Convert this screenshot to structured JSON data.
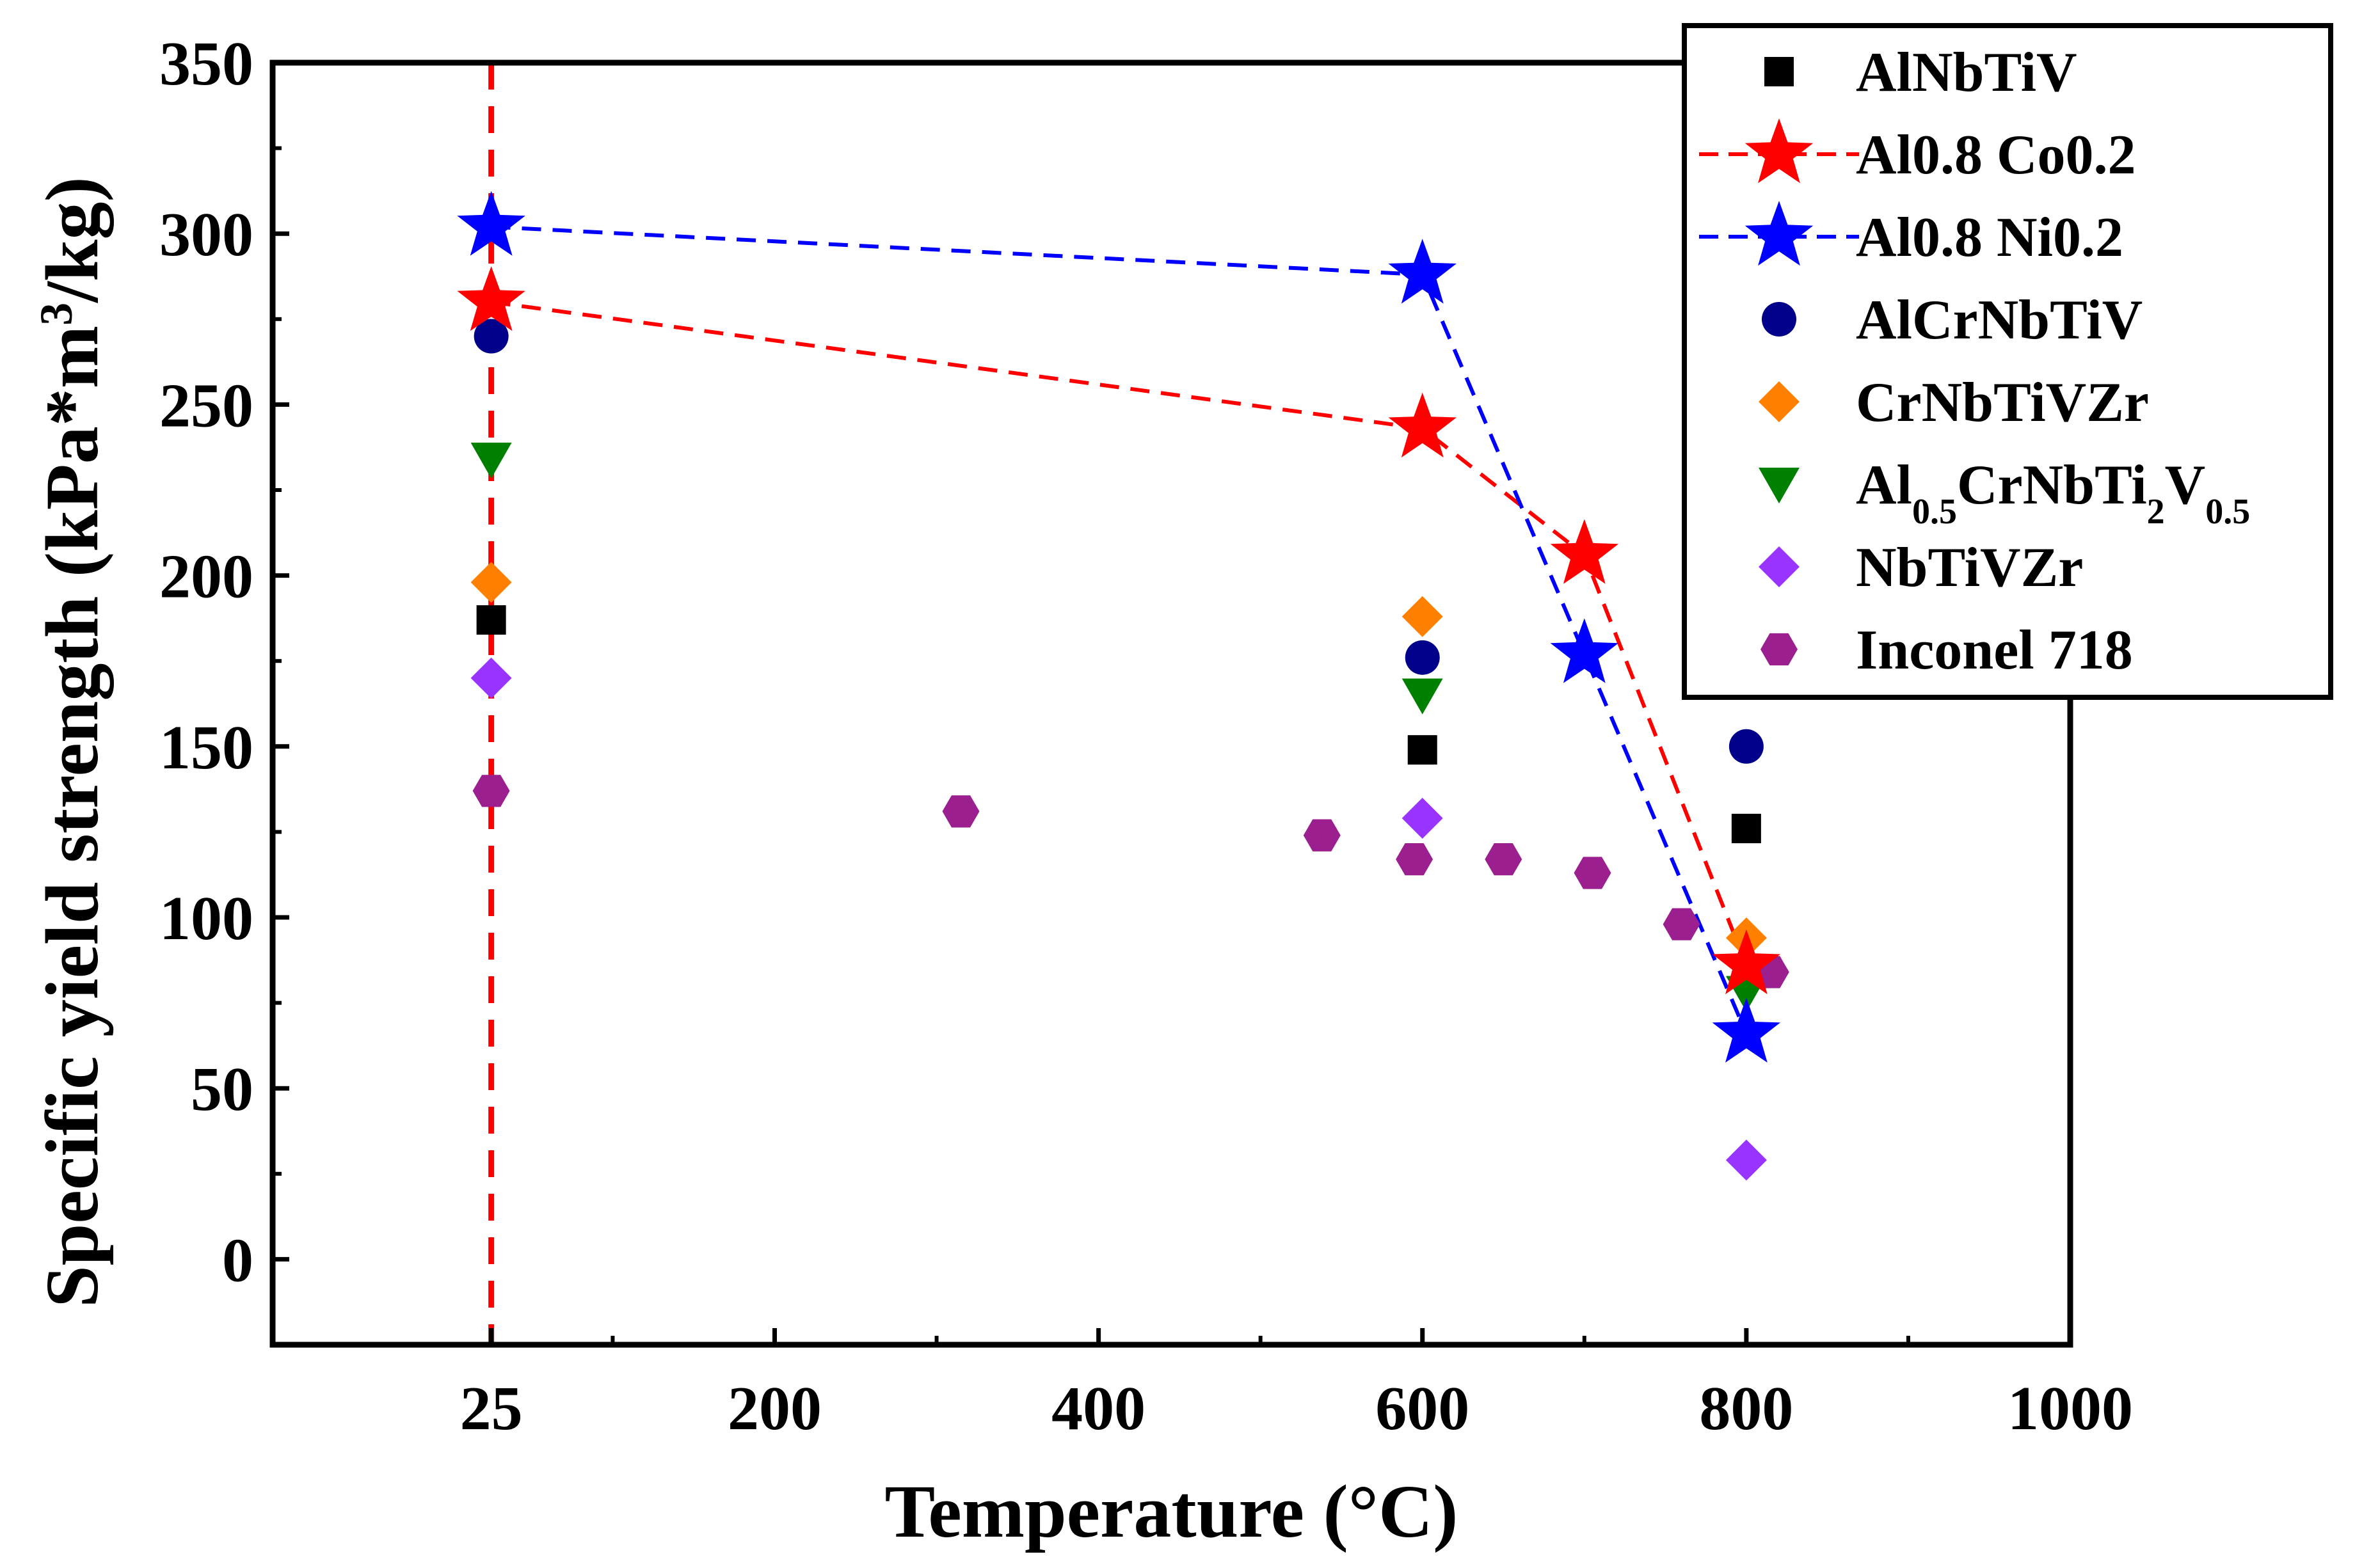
{
  "chart_data": {
    "type": "scatter",
    "xlabel": "Temperature (°C)",
    "ylabel": "Specific yield strength (kPa*m",
    "ylabel_sup": "3",
    "ylabel_end": "/kg)",
    "xlim": [
      -110,
      1000
    ],
    "ylim": [
      -25,
      350
    ],
    "x_ticks": [
      {
        "value": 25,
        "label": "25"
      },
      {
        "value": 200,
        "label": "200"
      },
      {
        "value": 400,
        "label": "400"
      },
      {
        "value": 600,
        "label": "600"
      },
      {
        "value": 800,
        "label": "800"
      },
      {
        "value": 1000,
        "label": "1000"
      }
    ],
    "x_minor_ticks": [
      100,
      300,
      500,
      700,
      900
    ],
    "y_ticks": [
      0,
      50,
      100,
      150,
      200,
      250,
      300,
      350
    ],
    "y_minor_ticks": [
      25,
      75,
      125,
      175,
      225,
      275,
      325
    ],
    "grid": false,
    "legend_position": "top-right",
    "reference_line": {
      "x": 25,
      "color": "#ff0000",
      "style": "dashed"
    },
    "series": [
      {
        "name": "AlNbTiV",
        "marker": "square",
        "color": "#000000",
        "x": [
          25,
          600,
          800
        ],
        "y": [
          187,
          149,
          126
        ]
      },
      {
        "name": "Al0.8 Co0.2",
        "marker": "star",
        "color": "#ff0000",
        "line": "dashed",
        "x": [
          25,
          600,
          700,
          800
        ],
        "y": [
          280,
          243,
          206,
          86
        ]
      },
      {
        "name": "Al0.8 Ni0.2",
        "marker": "star",
        "color": "#0000ff",
        "line": "dashed",
        "x": [
          25,
          600,
          700,
          800
        ],
        "y": [
          302,
          288,
          177,
          66
        ]
      },
      {
        "name": "AlCrNbTiV",
        "marker": "circle",
        "color": "#00008b",
        "x": [
          25,
          600,
          800
        ],
        "y": [
          270,
          176,
          150
        ]
      },
      {
        "name": "CrNbTiVZr",
        "marker": "diamond",
        "color": "#ff8000",
        "x": [
          25,
          600,
          800
        ],
        "y": [
          198,
          188,
          94
        ]
      },
      {
        "name": "Al0.5CrNbTi2V0.5",
        "label_parts": [
          "Al",
          "0.5",
          "CrNbTi",
          "2",
          "V",
          "0.5"
        ],
        "marker": "triangle-down",
        "color": "#008000",
        "x": [
          25,
          600,
          800
        ],
        "y": [
          234,
          165,
          78
        ]
      },
      {
        "name": "NbTiVZr",
        "marker": "diamond",
        "color": "#9933ff",
        "x": [
          25,
          600,
          800
        ],
        "y": [
          170,
          129,
          29
        ]
      },
      {
        "name": "Inconel 718",
        "marker": "hexagon",
        "color": "#9b1f8f",
        "x": [
          25,
          315,
          538,
          595,
          650,
          705,
          760,
          815
        ],
        "y": [
          137,
          131,
          124,
          117,
          117,
          113,
          98,
          84
        ]
      }
    ]
  }
}
